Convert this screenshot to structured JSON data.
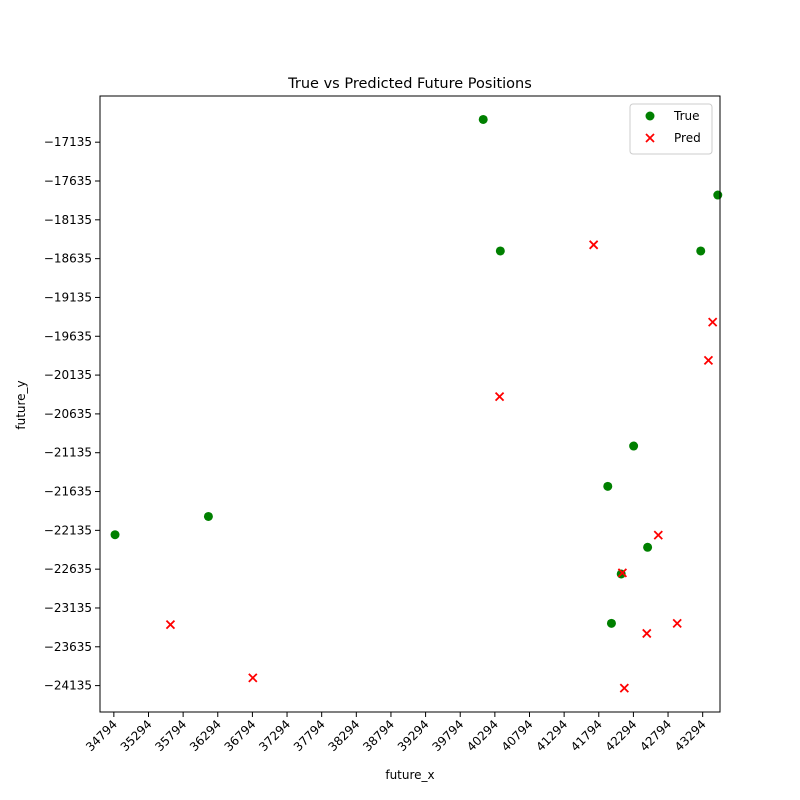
{
  "chart_data": {
    "type": "scatter",
    "title": "True vs Predicted Future Positions",
    "xlabel": "future_x",
    "ylabel": "future_y",
    "xlim": [
      34594,
      43544
    ],
    "ylim": [
      -24475,
      -16540
    ],
    "x_ticks": [
      34794,
      35294,
      35794,
      36294,
      36794,
      37294,
      37794,
      38294,
      38794,
      39294,
      39794,
      40294,
      40794,
      41294,
      41794,
      42294,
      42794,
      43294
    ],
    "x_tick_labels": [
      "34794",
      "35294",
      "35794",
      "36294",
      "36794",
      "37294",
      "37794",
      "38294",
      "38794",
      "39294",
      "39794",
      "40294",
      "40794",
      "41294",
      "41794",
      "42294",
      "42794",
      "43294"
    ],
    "y_ticks": [
      -17135,
      -17635,
      -18135,
      -18635,
      -19135,
      -19635,
      -20135,
      -20635,
      -21135,
      -21635,
      -22135,
      -22635,
      -23135,
      -23635,
      -24135
    ],
    "y_tick_labels": [
      "−17135",
      "−17635",
      "−18135",
      "−18635",
      "−19135",
      "−19635",
      "−20135",
      "−20635",
      "−21135",
      "−21635",
      "−22135",
      "−22635",
      "−23135",
      "−23635",
      "−24135"
    ],
    "legend_position": "top-right",
    "grid": false,
    "series": [
      {
        "name": "True",
        "marker": "circle",
        "color": "#008000",
        "points": [
          {
            "x": 40126,
            "y": -16842
          },
          {
            "x": 43512,
            "y": -17816
          },
          {
            "x": 40373,
            "y": -18536
          },
          {
            "x": 43266,
            "y": -18536
          },
          {
            "x": 42297,
            "y": -21049
          },
          {
            "x": 41924,
            "y": -21568
          },
          {
            "x": 36159,
            "y": -21956
          },
          {
            "x": 34811,
            "y": -22191
          },
          {
            "x": 42499,
            "y": -22353
          },
          {
            "x": 42118,
            "y": -22697
          },
          {
            "x": 41977,
            "y": -23333
          }
        ]
      },
      {
        "name": "Pred",
        "marker": "x",
        "color": "#ff0000",
        "points": [
          {
            "x": 41720,
            "y": -18457
          },
          {
            "x": 43438,
            "y": -19453
          },
          {
            "x": 43377,
            "y": -19946
          },
          {
            "x": 40362,
            "y": -20413
          },
          {
            "x": 42653,
            "y": -22197
          },
          {
            "x": 42135,
            "y": -22683
          },
          {
            "x": 35611,
            "y": -23350
          },
          {
            "x": 36800,
            "y": -24035
          },
          {
            "x": 42926,
            "y": -23333
          },
          {
            "x": 42487,
            "y": -23463
          },
          {
            "x": 42163,
            "y": -24168
          }
        ]
      }
    ]
  }
}
